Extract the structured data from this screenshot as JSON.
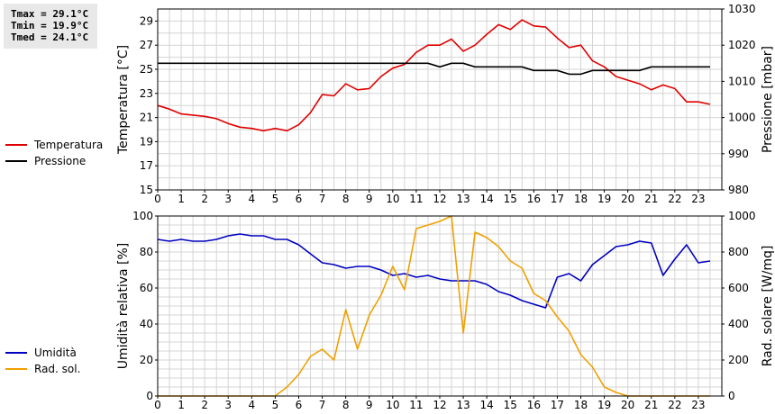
{
  "stats": {
    "tmax": "Tmax = 29.1°C",
    "tmin": "Tmin = 19.9°C",
    "tmed": "Tmed = 24.1°C"
  },
  "legend_top": [
    {
      "label": "Temperatura",
      "color": "#e00000"
    },
    {
      "label": "Pressione",
      "color": "#000000"
    }
  ],
  "legend_bottom": [
    {
      "label": "Umidità",
      "color": "#0000c0"
    },
    {
      "label": "Rad. sol.",
      "color": "#f0a000"
    }
  ],
  "chart_data": [
    {
      "type": "line",
      "xlim": [
        0,
        24
      ],
      "x_ticks": [
        "0",
        "1",
        "2",
        "3",
        "4",
        "5",
        "6",
        "7",
        "8",
        "9",
        "10",
        "11",
        "12",
        "13",
        "14",
        "15",
        "16",
        "17",
        "18",
        "19",
        "20",
        "21",
        "22",
        "23"
      ],
      "grid": true,
      "ylabel": "Temperatura [°C]",
      "ylim": [
        15,
        30
      ],
      "y_ticks": [
        "15",
        "17",
        "19",
        "21",
        "23",
        "25",
        "27",
        "29"
      ],
      "y2label": "Pressione [mbar]",
      "y2lim": [
        980,
        1030
      ],
      "y2_ticks": [
        "980",
        "990",
        "1000",
        "1010",
        "1020",
        "1030"
      ],
      "series": [
        {
          "name": "Temperatura",
          "axis": "left",
          "color": "#e00000",
          "x": [
            0,
            0.5,
            1,
            1.5,
            2,
            2.5,
            3,
            3.5,
            4,
            4.5,
            5,
            5.5,
            6,
            6.5,
            7,
            7.5,
            8,
            8.5,
            9,
            9.5,
            10,
            10.5,
            11,
            11.5,
            12,
            12.5,
            13,
            13.5,
            14,
            14.5,
            15,
            15.5,
            16,
            16.5,
            17,
            17.5,
            18,
            18.5,
            19,
            19.5,
            20,
            20.5,
            21,
            21.5,
            22,
            22.5,
            23,
            23.5
          ],
          "y": [
            22.0,
            21.7,
            21.3,
            21.2,
            21.1,
            20.9,
            20.5,
            20.2,
            20.1,
            19.9,
            20.1,
            19.9,
            20.4,
            21.4,
            22.9,
            22.8,
            23.8,
            23.3,
            23.4,
            24.4,
            25.1,
            25.4,
            26.4,
            27.0,
            27.0,
            27.5,
            26.5,
            27.0,
            27.9,
            28.7,
            28.3,
            29.1,
            28.6,
            28.5,
            27.6,
            26.8,
            27.0,
            25.7,
            25.2,
            24.4,
            24.1,
            23.8,
            23.3,
            23.7,
            23.4,
            22.3,
            22.3,
            22.1
          ]
        },
        {
          "name": "Pressione",
          "axis": "right",
          "color": "#000000",
          "x": [
            0,
            1,
            2,
            3,
            4,
            5,
            6,
            7,
            8,
            9,
            10,
            10.5,
            11,
            11.5,
            12,
            12.5,
            13,
            13.5,
            14,
            14.5,
            15,
            15.5,
            16,
            16.5,
            17,
            17.5,
            18,
            18.5,
            19,
            19.5,
            20,
            20.5,
            21,
            21.5,
            22,
            22.5,
            23,
            23.5
          ],
          "y": [
            1015,
            1015,
            1015,
            1015,
            1015,
            1015,
            1015,
            1015,
            1015,
            1015,
            1015,
            1015,
            1015,
            1015,
            1014,
            1015,
            1015,
            1014,
            1014,
            1014,
            1014,
            1014,
            1013,
            1013,
            1013,
            1012,
            1012,
            1013,
            1013,
            1013,
            1013,
            1013,
            1014,
            1014,
            1014,
            1014,
            1014,
            1014
          ]
        }
      ]
    },
    {
      "type": "line",
      "xlim": [
        0,
        24
      ],
      "x_ticks": [
        "0",
        "1",
        "2",
        "3",
        "4",
        "5",
        "6",
        "7",
        "8",
        "9",
        "10",
        "11",
        "12",
        "13",
        "14",
        "15",
        "16",
        "17",
        "18",
        "19",
        "20",
        "21",
        "22",
        "23"
      ],
      "grid": true,
      "ylabel": "Umidità relativa [%]",
      "ylim": [
        0,
        100
      ],
      "y_ticks": [
        "0",
        "20",
        "40",
        "60",
        "80",
        "100"
      ],
      "y2label": "Rad. solare [W/mq]",
      "y2lim": [
        0,
        1000
      ],
      "y2_ticks": [
        "0",
        "200",
        "400",
        "600",
        "800",
        "1000"
      ],
      "series": [
        {
          "name": "Umidità",
          "axis": "left",
          "color": "#0000c0",
          "x": [
            0,
            0.5,
            1,
            1.5,
            2,
            2.5,
            3,
            3.5,
            4,
            4.5,
            5,
            5.5,
            6,
            6.5,
            7,
            7.5,
            8,
            8.5,
            9,
            9.5,
            10,
            10.5,
            11,
            11.5,
            12,
            12.5,
            13,
            13.5,
            14,
            14.5,
            15,
            15.5,
            16,
            16.5,
            17,
            17.5,
            18,
            18.5,
            19,
            19.5,
            20,
            20.5,
            21,
            21.5,
            22,
            22.5,
            23,
            23.5
          ],
          "y": [
            87,
            86,
            87,
            86,
            86,
            87,
            89,
            90,
            89,
            89,
            87,
            87,
            84,
            79,
            74,
            73,
            71,
            72,
            72,
            70,
            67,
            68,
            66,
            67,
            65,
            64,
            64,
            64,
            62,
            58,
            56,
            53,
            51,
            49,
            66,
            68,
            64,
            73,
            78,
            83,
            84,
            86,
            85,
            67,
            76,
            84,
            74,
            75
          ]
        },
        {
          "name": "Rad. sol.",
          "axis": "right",
          "color": "#f0a000",
          "x": [
            0,
            0.5,
            1,
            1.5,
            2,
            2.5,
            3,
            3.5,
            4,
            4.5,
            5,
            5.5,
            6,
            6.5,
            7,
            7.5,
            8,
            8.5,
            9,
            9.5,
            10,
            10.5,
            11,
            11.5,
            12,
            12.5,
            13,
            13.5,
            14,
            14.5,
            15,
            15.5,
            16,
            16.5,
            17,
            17.5,
            18,
            18.5,
            19,
            19.5,
            20,
            20.5,
            21,
            21.5,
            22,
            22.5,
            23,
            23.5
          ],
          "y": [
            0,
            0,
            0,
            0,
            0,
            0,
            0,
            0,
            0,
            0,
            0,
            50,
            120,
            220,
            260,
            200,
            480,
            260,
            450,
            560,
            720,
            590,
            930,
            950,
            970,
            1000,
            350,
            910,
            880,
            830,
            750,
            710,
            570,
            530,
            440,
            360,
            230,
            160,
            50,
            20,
            0,
            0,
            0,
            0,
            0,
            0,
            0,
            0
          ]
        }
      ]
    }
  ]
}
